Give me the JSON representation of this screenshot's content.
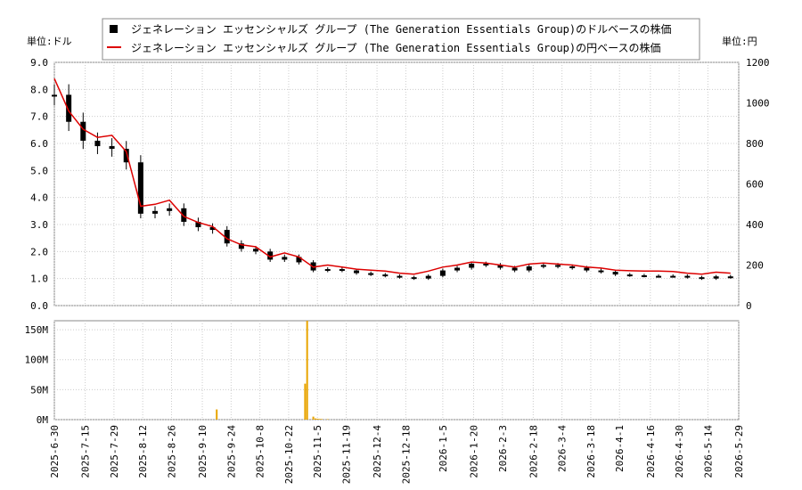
{
  "chart_data": [
    {
      "type": "line",
      "legend": [
        {
          "name": "ジェネレーション エッセンシャルズ グループ (The Generation Essentials Group)のドルベースの株価",
          "color": "#000000",
          "marker": "square"
        },
        {
          "name": "ジェネレーション エッセンシャルズ グループ (The Generation Essentials Group)の円ベースの株価",
          "color": "#dd0000",
          "marker": "line"
        }
      ],
      "y_left_unit_label": "単位:ドル",
      "y_right_unit_label": "単位:円",
      "ylim_left": [
        0,
        9
      ],
      "ylim_right": [
        0,
        1200
      ],
      "y_left_ticks": [
        "0.0",
        "1.0",
        "2.0",
        "3.0",
        "4.0",
        "5.0",
        "6.0",
        "7.0",
        "8.0",
        "9.0"
      ],
      "y_right_ticks": [
        "0",
        "200",
        "400",
        "600",
        "800",
        "1000",
        "1200"
      ],
      "grid": true,
      "x": [
        "2025-6-30",
        "2025-7-7",
        "2025-7-14",
        "2025-7-21",
        "2025-7-28",
        "2025-8-4",
        "2025-8-11",
        "2025-8-18",
        "2025-8-25",
        "2025-9-1",
        "2025-9-8",
        "2025-9-15",
        "2025-9-22",
        "2025-9-29",
        "2025-10-6",
        "2025-10-13",
        "2025-10-20",
        "2025-10-27",
        "2025-11-3",
        "2025-11-10",
        "2025-11-17",
        "2025-11-24",
        "2025-12-1",
        "2025-12-8",
        "2025-12-15",
        "2025-12-22",
        "2025-12-29",
        "2026-1-5",
        "2026-1-12",
        "2026-1-19",
        "2026-1-26",
        "2026-2-2",
        "2026-2-9",
        "2026-2-16",
        "2026-2-23",
        "2026-3-2",
        "2026-3-9",
        "2026-3-16",
        "2026-3-23",
        "2026-3-30",
        "2026-4-6",
        "2026-4-13",
        "2026-4-20",
        "2026-4-27",
        "2026-5-4",
        "2026-5-11",
        "2026-5-18",
        "2026-5-25"
      ],
      "series": [
        {
          "name": "ジェネレーション エッセンシャルズ グループ (The Generation Essentials Group)のドルベースの株価",
          "unit": "USD",
          "values": [
            7.8,
            6.8,
            6.1,
            5.9,
            5.8,
            5.3,
            3.4,
            3.5,
            3.6,
            3.1,
            2.9,
            2.8,
            2.3,
            2.1,
            2.0,
            1.7,
            1.8,
            1.6,
            1.3,
            1.35,
            1.3,
            1.2,
            1.15,
            1.1,
            1.05,
            1.0,
            1.1,
            1.3,
            1.4,
            1.55,
            1.5,
            1.4,
            1.3,
            1.45,
            1.5,
            1.45,
            1.4,
            1.3,
            1.25,
            1.15,
            1.12,
            1.1,
            1.1,
            1.1,
            1.05,
            1.0,
            1.08,
            1.05
          ]
        },
        {
          "name": "ジェネレーション エッセンシャルズ グループ (The Generation Essentials Group)の円ベースの株価",
          "unit": "JPY",
          "values": [
            1120,
            960,
            870,
            830,
            840,
            760,
            490,
            500,
            520,
            440,
            410,
            390,
            330,
            300,
            290,
            240,
            260,
            240,
            190,
            200,
            190,
            180,
            175,
            170,
            160,
            155,
            170,
            190,
            200,
            215,
            210,
            200,
            190,
            205,
            210,
            205,
            200,
            190,
            185,
            175,
            172,
            170,
            170,
            168,
            160,
            155,
            165,
            160
          ]
        }
      ]
    },
    {
      "type": "bar",
      "ylim": [
        0,
        165000000
      ],
      "y_ticks": [
        "0M",
        "50M",
        "100M",
        "150M"
      ],
      "x_tick_labels": [
        "2025-6-30",
        "2025-7-15",
        "2025-7-29",
        "2025-8-12",
        "2025-8-26",
        "2025-9-10",
        "2025-9-24",
        "2025-10-8",
        "2025-10-22",
        "2025-11-5",
        "2025-11-19",
        "2025-12-4",
        "2025-12-18",
        "2026-1-5",
        "2026-1-20",
        "2026-2-3",
        "2026-2-18",
        "2026-3-4",
        "2026-3-18",
        "2026-4-1",
        "2026-4-16",
        "2026-4-30",
        "2026-5-14",
        "2026-5-29"
      ],
      "color": "#e8a400",
      "x": [
        "2025-9-17",
        "2025-10-30",
        "2025-10-31",
        "2025-11-3",
        "2025-11-4",
        "2025-11-5",
        "2025-11-6",
        "2025-11-7",
        "2025-11-10"
      ],
      "values": [
        17000000,
        60000000,
        165000000,
        5000000,
        2000000,
        1500000,
        1200000,
        1000000,
        800000
      ]
    }
  ]
}
